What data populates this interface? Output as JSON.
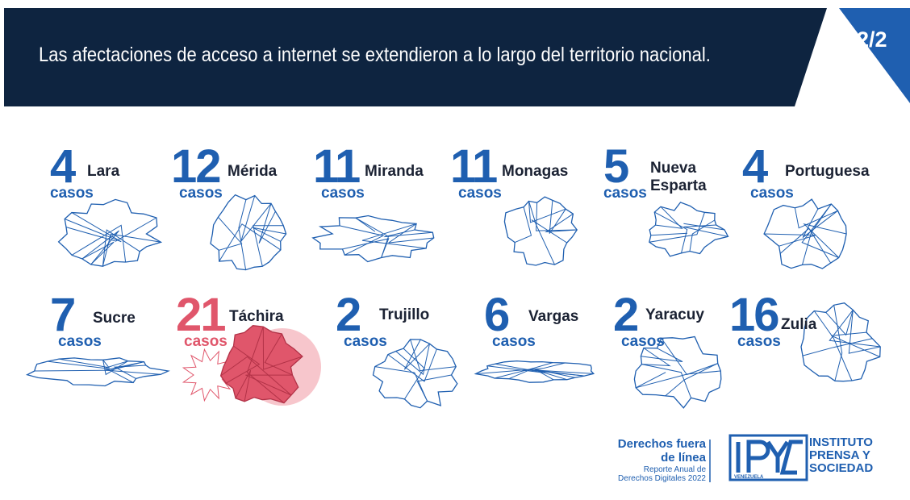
{
  "header": {
    "title": "Las afectaciones de acceso a internet se extendieron a lo largo del territorio nacional.",
    "page": "2/2"
  },
  "unit": "casos",
  "states": [
    {
      "count": "4",
      "name": "Lara",
      "color": "#1f5fb0"
    },
    {
      "count": "12",
      "name": "Mérida",
      "color": "#1f5fb0"
    },
    {
      "count": "11",
      "name": "Miranda",
      "color": "#1f5fb0"
    },
    {
      "count": "11",
      "name": "Monagas",
      "color": "#1f5fb0"
    },
    {
      "count": "5",
      "name": "Nueva Esparta",
      "color": "#1f5fb0"
    },
    {
      "count": "4",
      "name": "Portuguesa",
      "color": "#1f5fb0"
    },
    {
      "count": "7",
      "name": "Sucre",
      "color": "#1f5fb0"
    },
    {
      "count": "21",
      "name": "Táchira",
      "color": "#e0566b"
    },
    {
      "count": "2",
      "name": "Trujillo",
      "color": "#1f5fb0"
    },
    {
      "count": "6",
      "name": "Vargas",
      "color": "#1f5fb0"
    },
    {
      "count": "2",
      "name": "Yaracuy",
      "color": "#1f5fb0"
    },
    {
      "count": "16",
      "name": "Zulia",
      "color": "#1f5fb0"
    }
  ],
  "footer": {
    "campaign": "Derechos fuera de línea",
    "report": "Reporte Anual de Derechos Digitales 2022",
    "org": "INSTITUTO PRENSA Y SOCIEDAD",
    "country": "VENEZUELA"
  }
}
